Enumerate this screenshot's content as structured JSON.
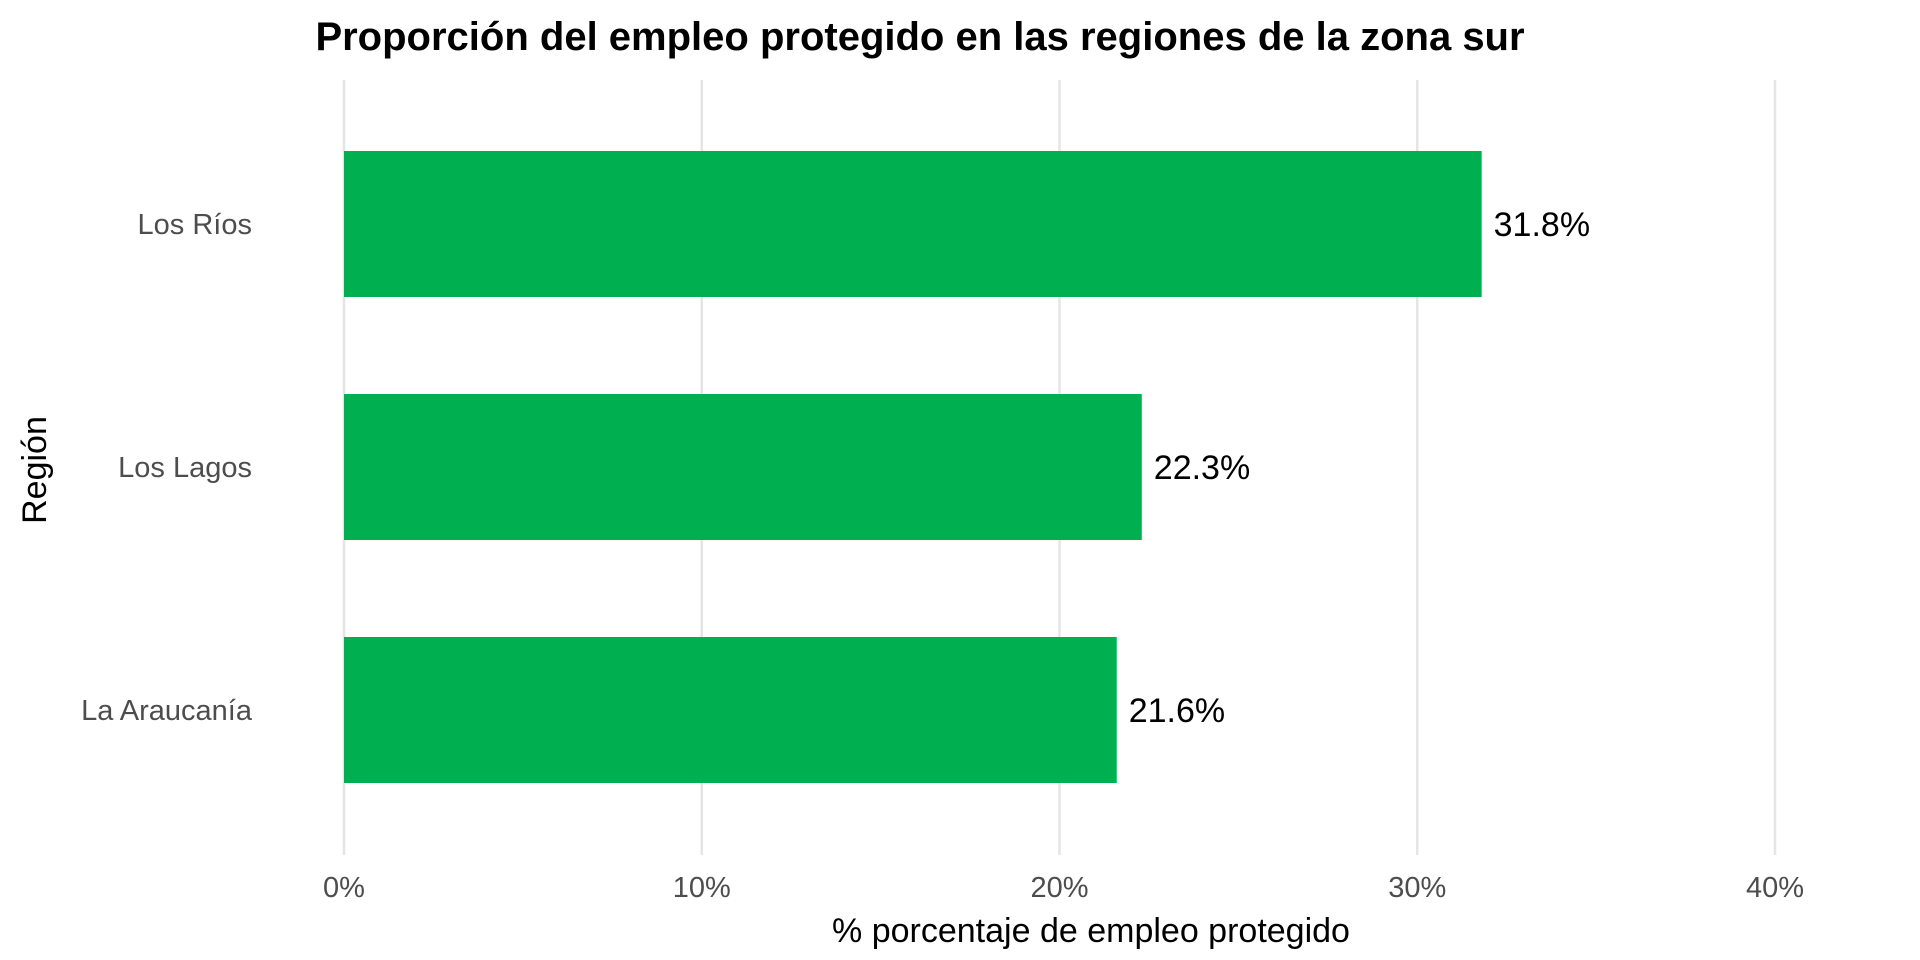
{
  "chart_data": {
    "type": "bar",
    "orientation": "horizontal",
    "title": "Proporción del empleo protegido en las regiones de la zona sur",
    "xlabel": "% porcentaje de empleo protegido",
    "ylabel": "Región",
    "categories": [
      "Los Ríos",
      "Los Lagos",
      "La Araucanía"
    ],
    "values": [
      31.8,
      22.3,
      21.6
    ],
    "data_labels": [
      "31.8%",
      "22.3%",
      "21.6%"
    ],
    "xlim": [
      0,
      40
    ],
    "x_ticks": [
      0,
      10,
      20,
      30,
      40
    ],
    "x_tick_labels": [
      "0%",
      "10%",
      "20%",
      "30%",
      "40%"
    ],
    "grid": true,
    "legend": "none",
    "bar_color": "#00B050"
  }
}
